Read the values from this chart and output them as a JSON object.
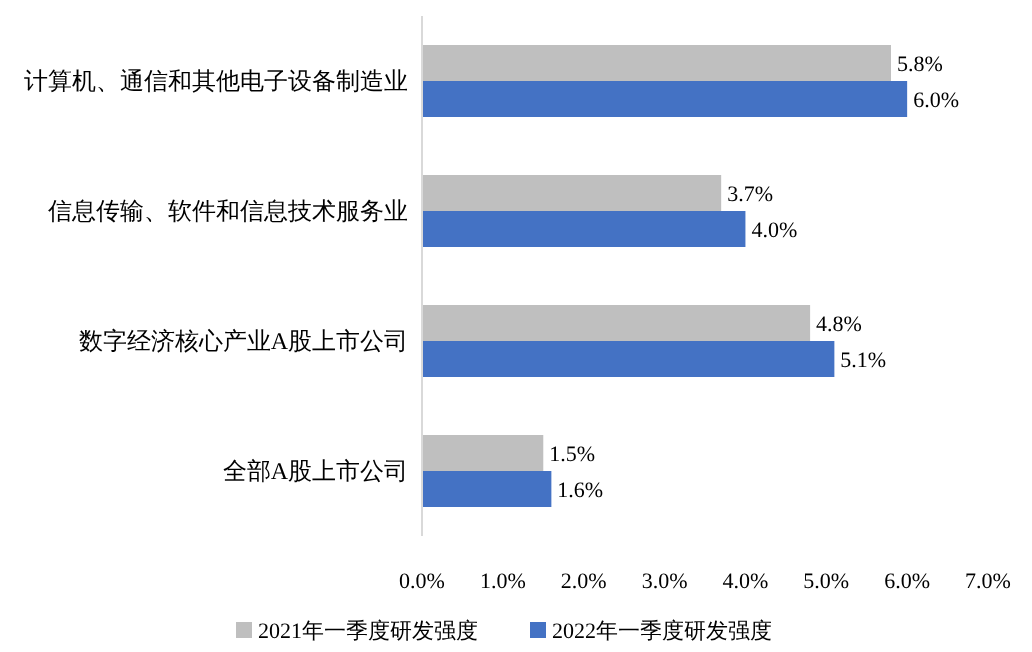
{
  "chart_data": {
    "type": "bar",
    "orientation": "horizontal",
    "categories": [
      "计算机、通信和其他电子设备制造业",
      "信息传输、软件和信息技术服务业",
      "数字经济核心产业A股上市公司",
      "全部A股上市公司"
    ],
    "series": [
      {
        "name": "2021年一季度研发强度",
        "color": "#bfbfbf",
        "values": [
          5.8,
          3.7,
          4.8,
          1.5
        ],
        "value_labels": [
          "5.8%",
          "3.7%",
          "4.8%",
          "1.5%"
        ]
      },
      {
        "name": "2022年一季度研发强度",
        "color": "#4472c4",
        "values": [
          6.0,
          4.0,
          5.1,
          1.6
        ],
        "value_labels": [
          "6.0%",
          "4.0%",
          "5.1%",
          "1.6%"
        ]
      }
    ],
    "xlim": [
      0,
      7
    ],
    "xticks": [
      {
        "value": 0,
        "label": "0.0%"
      },
      {
        "value": 1,
        "label": "1.0%"
      },
      {
        "value": 2,
        "label": "2.0%"
      },
      {
        "value": 3,
        "label": "3.0%"
      },
      {
        "value": 4,
        "label": "4.0%"
      },
      {
        "value": 5,
        "label": "5.0%"
      },
      {
        "value": 6,
        "label": "6.0%"
      },
      {
        "value": 7,
        "label": "7.0%"
      }
    ],
    "legend": "bottom",
    "grid": false
  }
}
